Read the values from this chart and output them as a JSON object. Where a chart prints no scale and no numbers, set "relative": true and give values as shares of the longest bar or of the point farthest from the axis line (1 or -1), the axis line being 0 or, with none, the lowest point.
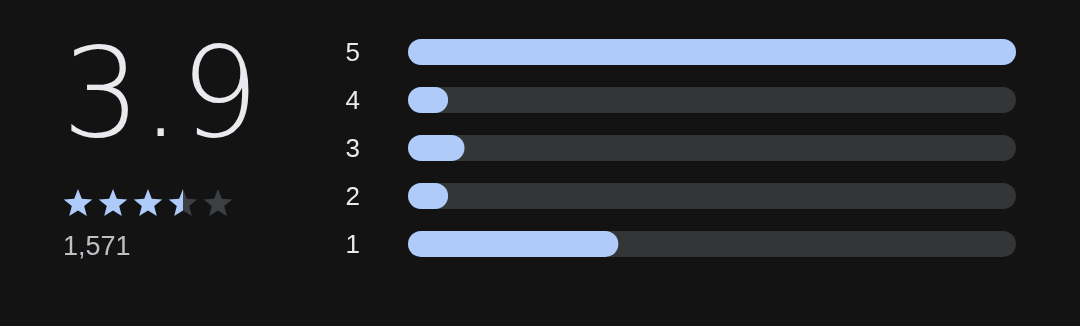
{
  "chart_data": {
    "type": "bar",
    "orientation": "horizontal",
    "relative": true,
    "categories": [
      "5",
      "4",
      "3",
      "2",
      "1"
    ],
    "values": [
      1,
      0.066,
      0.093,
      0.066,
      0.346
    ],
    "color": "#aecbfa",
    "annotations": [
      "3.9",
      "1,571"
    ]
  }
}
